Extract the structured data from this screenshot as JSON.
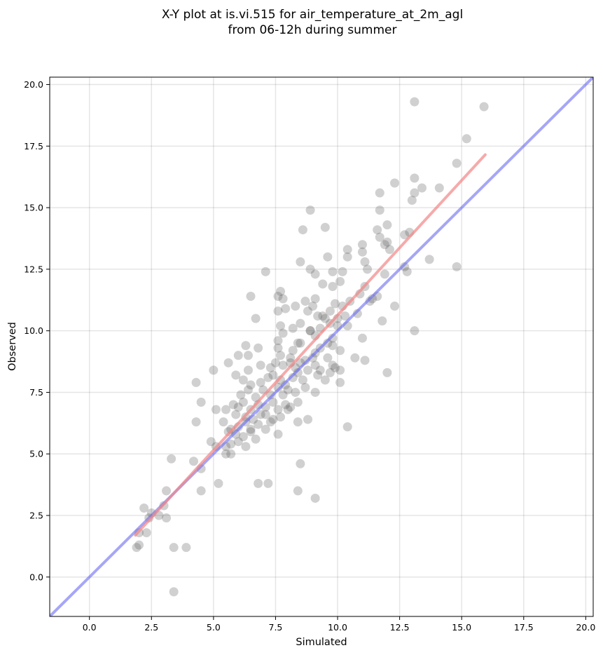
{
  "chart_data": {
    "type": "scatter",
    "title": [
      "X-Y plot at is.vi.515 for air_temperature_at_2m_agl",
      "from 06-12h during summer"
    ],
    "xlabel": "Simulated",
    "ylabel": "Observed",
    "xlim": [
      -1.6,
      20.3
    ],
    "ylim": [
      -1.6,
      20.3
    ],
    "x_ticks": [
      0.0,
      2.5,
      5.0,
      7.5,
      10.0,
      12.5,
      15.0,
      17.5,
      20.0
    ],
    "y_ticks": [
      0.0,
      2.5,
      5.0,
      7.5,
      10.0,
      12.5,
      15.0,
      17.5,
      20.0
    ],
    "x_tick_labels": [
      "0.0",
      "2.5",
      "5.0",
      "7.5",
      "10.0",
      "12.5",
      "15.0",
      "17.5",
      "20.0"
    ],
    "y_tick_labels": [
      "0.0",
      "2.5",
      "5.0",
      "7.5",
      "10.0",
      "12.5",
      "15.0",
      "17.5",
      "20.0"
    ],
    "grid": true,
    "point_color": "#555555",
    "identity_line": {
      "color": "#6b6bf2",
      "from": [
        -1.6,
        -1.6
      ],
      "to": [
        20.3,
        20.3
      ]
    },
    "regression_line": {
      "color": "#f28686",
      "from": [
        1.85,
        1.7
      ],
      "to": [
        15.95,
        17.15
      ]
    },
    "points": [
      [
        13.1,
        19.3
      ],
      [
        15.9,
        19.1
      ],
      [
        15.2,
        17.8
      ],
      [
        14.8,
        16.8
      ],
      [
        12.3,
        16.0
      ],
      [
        13.1,
        16.2
      ],
      [
        13.4,
        15.8
      ],
      [
        13.1,
        15.6
      ],
      [
        14.1,
        15.8
      ],
      [
        11.7,
        15.6
      ],
      [
        13.0,
        15.3
      ],
      [
        8.9,
        14.9
      ],
      [
        11.7,
        14.9
      ],
      [
        8.6,
        14.1
      ],
      [
        9.5,
        14.2
      ],
      [
        11.6,
        14.1
      ],
      [
        12.0,
        14.3
      ],
      [
        12.7,
        13.9
      ],
      [
        12.9,
        14.0
      ],
      [
        11.7,
        13.8
      ],
      [
        11.9,
        13.5
      ],
      [
        12.0,
        13.6
      ],
      [
        10.4,
        13.3
      ],
      [
        11.0,
        13.5
      ],
      [
        12.1,
        13.3
      ],
      [
        11.0,
        13.2
      ],
      [
        10.4,
        13.0
      ],
      [
        9.6,
        13.0
      ],
      [
        8.5,
        12.8
      ],
      [
        11.1,
        12.8
      ],
      [
        13.7,
        12.9
      ],
      [
        12.7,
        12.6
      ],
      [
        14.8,
        12.6
      ],
      [
        12.8,
        12.4
      ],
      [
        8.9,
        12.5
      ],
      [
        7.1,
        12.4
      ],
      [
        9.1,
        12.3
      ],
      [
        9.8,
        12.4
      ],
      [
        10.2,
        12.4
      ],
      [
        11.2,
        12.5
      ],
      [
        11.9,
        12.3
      ],
      [
        9.4,
        11.9
      ],
      [
        9.8,
        11.8
      ],
      [
        10.1,
        12.0
      ],
      [
        10.9,
        11.5
      ],
      [
        11.1,
        11.8
      ],
      [
        11.3,
        11.2
      ],
      [
        11.6,
        11.4
      ],
      [
        7.7,
        11.6
      ],
      [
        7.6,
        11.4
      ],
      [
        6.5,
        11.4
      ],
      [
        7.8,
        11.3
      ],
      [
        8.3,
        11.0
      ],
      [
        8.7,
        11.2
      ],
      [
        9.0,
        11.0
      ],
      [
        9.1,
        11.3
      ],
      [
        9.4,
        10.6
      ],
      [
        9.7,
        10.8
      ],
      [
        9.9,
        11.1
      ],
      [
        10.2,
        11.0
      ],
      [
        10.5,
        11.2
      ],
      [
        11.4,
        11.3
      ],
      [
        12.3,
        11.0
      ],
      [
        7.6,
        10.8
      ],
      [
        7.9,
        10.9
      ],
      [
        8.8,
        10.8
      ],
      [
        9.2,
        10.6
      ],
      [
        9.7,
        10.3
      ],
      [
        10.0,
        10.5
      ],
      [
        10.3,
        10.6
      ],
      [
        10.8,
        10.7
      ],
      [
        11.8,
        10.4
      ],
      [
        6.7,
        10.5
      ],
      [
        7.7,
        10.2
      ],
      [
        8.2,
        10.1
      ],
      [
        8.5,
        10.3
      ],
      [
        8.9,
        10.0
      ],
      [
        9.3,
        10.1
      ],
      [
        9.5,
        10.5
      ],
      [
        10.0,
        10.2
      ],
      [
        10.4,
        10.2
      ],
      [
        7.8,
        9.9
      ],
      [
        8.9,
        10.0
      ],
      [
        9.1,
        9.8
      ],
      [
        7.6,
        9.6
      ],
      [
        8.5,
        9.5
      ],
      [
        9.8,
        9.7
      ],
      [
        11.0,
        9.7
      ],
      [
        13.1,
        10.0
      ],
      [
        6.3,
        9.4
      ],
      [
        6.8,
        9.3
      ],
      [
        7.6,
        9.3
      ],
      [
        8.2,
        9.2
      ],
      [
        8.4,
        9.5
      ],
      [
        9.1,
        9.1
      ],
      [
        9.3,
        9.3
      ],
      [
        9.6,
        9.5
      ],
      [
        9.8,
        9.4
      ],
      [
        10.1,
        9.2
      ],
      [
        6.0,
        9.0
      ],
      [
        6.4,
        9.0
      ],
      [
        7.7,
        9.0
      ],
      [
        8.1,
        8.9
      ],
      [
        8.7,
        8.8
      ],
      [
        9.0,
        8.9
      ],
      [
        9.6,
        8.9
      ],
      [
        9.8,
        8.6
      ],
      [
        10.7,
        8.9
      ],
      [
        11.1,
        8.8
      ],
      [
        5.6,
        8.7
      ],
      [
        6.4,
        8.4
      ],
      [
        6.9,
        8.6
      ],
      [
        7.3,
        8.5
      ],
      [
        7.5,
        8.7
      ],
      [
        7.8,
        8.6
      ],
      [
        8.1,
        8.7
      ],
      [
        8.3,
        8.5
      ],
      [
        8.5,
        8.7
      ],
      [
        8.8,
        8.4
      ],
      [
        9.1,
        8.6
      ],
      [
        9.3,
        8.4
      ],
      [
        9.7,
        8.3
      ],
      [
        9.9,
        8.5
      ],
      [
        10.1,
        8.4
      ],
      [
        5.0,
        8.4
      ],
      [
        4.3,
        7.9
      ],
      [
        5.9,
        8.2
      ],
      [
        6.2,
        8.0
      ],
      [
        6.5,
        7.8
      ],
      [
        6.9,
        7.9
      ],
      [
        7.2,
        8.1
      ],
      [
        7.4,
        8.2
      ],
      [
        7.7,
        8.0
      ],
      [
        7.9,
        7.8
      ],
      [
        8.2,
        8.1
      ],
      [
        8.4,
        8.3
      ],
      [
        8.6,
        8.0
      ],
      [
        9.2,
        8.2
      ],
      [
        9.5,
        8.0
      ],
      [
        10.1,
        7.9
      ],
      [
        12.0,
        8.3
      ],
      [
        4.5,
        7.1
      ],
      [
        6.1,
        7.4
      ],
      [
        6.4,
        7.6
      ],
      [
        6.7,
        7.3
      ],
      [
        7.0,
        7.6
      ],
      [
        7.3,
        7.4
      ],
      [
        7.6,
        7.7
      ],
      [
        7.8,
        7.4
      ],
      [
        8.0,
        7.6
      ],
      [
        8.3,
        7.5
      ],
      [
        8.7,
        7.7
      ],
      [
        9.1,
        7.5
      ],
      [
        5.8,
        7.0
      ],
      [
        6.0,
        6.9
      ],
      [
        6.2,
        7.1
      ],
      [
        6.5,
        6.8
      ],
      [
        6.8,
        7.0
      ],
      [
        7.1,
        6.9
      ],
      [
        7.4,
        7.1
      ],
      [
        7.6,
        6.8
      ],
      [
        7.9,
        7.0
      ],
      [
        8.1,
        6.9
      ],
      [
        8.4,
        7.1
      ],
      [
        5.1,
        6.8
      ],
      [
        5.5,
        6.8
      ],
      [
        5.9,
        6.6
      ],
      [
        6.3,
        6.5
      ],
      [
        6.6,
        6.4
      ],
      [
        6.9,
        6.6
      ],
      [
        7.1,
        6.6
      ],
      [
        7.4,
        6.4
      ],
      [
        7.7,
        6.5
      ],
      [
        8.0,
        6.8
      ],
      [
        4.3,
        6.3
      ],
      [
        5.4,
        6.3
      ],
      [
        5.7,
        6.0
      ],
      [
        6.0,
        6.1
      ],
      [
        6.3,
        6.3
      ],
      [
        6.5,
        6.0
      ],
      [
        6.8,
        6.2
      ],
      [
        7.1,
        6.0
      ],
      [
        7.3,
        6.3
      ],
      [
        8.4,
        6.3
      ],
      [
        8.8,
        6.4
      ],
      [
        10.4,
        6.1
      ],
      [
        5.6,
        5.9
      ],
      [
        5.9,
        5.8
      ],
      [
        6.2,
        5.7
      ],
      [
        6.5,
        5.9
      ],
      [
        6.7,
        5.6
      ],
      [
        7.6,
        5.8
      ],
      [
        5.5,
        5.3
      ],
      [
        5.7,
        5.4
      ],
      [
        6.0,
        5.5
      ],
      [
        6.3,
        5.3
      ],
      [
        4.9,
        5.5
      ],
      [
        5.1,
        5.3
      ],
      [
        5.5,
        5.0
      ],
      [
        5.7,
        5.0
      ],
      [
        4.5,
        4.4
      ],
      [
        3.3,
        4.8
      ],
      [
        4.2,
        4.7
      ],
      [
        8.5,
        4.6
      ],
      [
        5.2,
        3.8
      ],
      [
        6.8,
        3.8
      ],
      [
        7.2,
        3.8
      ],
      [
        3.1,
        3.5
      ],
      [
        4.5,
        3.5
      ],
      [
        8.4,
        3.5
      ],
      [
        9.1,
        3.2
      ],
      [
        3.0,
        2.9
      ],
      [
        2.2,
        2.8
      ],
      [
        2.5,
        2.6
      ],
      [
        2.8,
        2.5
      ],
      [
        2.4,
        2.4
      ],
      [
        3.1,
        2.4
      ],
      [
        2.0,
        1.8
      ],
      [
        2.3,
        1.8
      ],
      [
        2.0,
        1.3
      ],
      [
        1.9,
        1.2
      ],
      [
        3.4,
        1.2
      ],
      [
        3.9,
        1.2
      ],
      [
        3.4,
        -0.6
      ]
    ]
  }
}
